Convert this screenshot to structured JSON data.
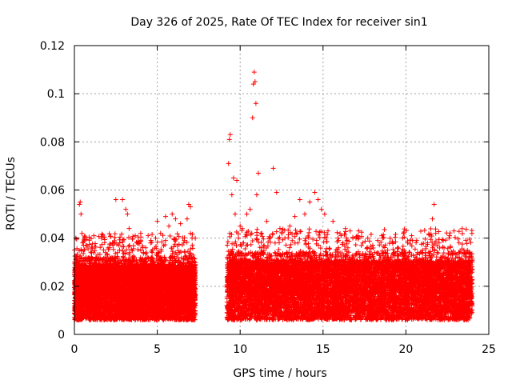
{
  "chart_data": {
    "type": "scatter",
    "title": "Day 326 of 2025, Rate Of TEC Index for receiver sin1",
    "xlabel": "GPS time / hours",
    "ylabel": "ROTI / TECUs",
    "xlim": [
      0,
      25
    ],
    "ylim": [
      0,
      0.12
    ],
    "x_ticks": [
      0,
      5,
      10,
      15,
      20,
      25
    ],
    "x_tick_labels": [
      "0",
      "5",
      "10",
      "15",
      "20",
      "25"
    ],
    "y_ticks": [
      0,
      0.02,
      0.04,
      0.06,
      0.08,
      0.1,
      0.12
    ],
    "y_tick_labels": [
      "0",
      "0.02",
      "0.04",
      "0.06",
      "0.08",
      "0.1",
      "0.12"
    ],
    "grid": true,
    "marker": "+",
    "series_color": "#ff0000",
    "series": [
      {
        "x": [
          0.2,
          0.3,
          0.35,
          0.4,
          0.5,
          0.6,
          0.8,
          1.0,
          1.3,
          1.6,
          2.0,
          2.3,
          2.5,
          2.6,
          2.9,
          3.1,
          3.2,
          3.3,
          3.5,
          3.8,
          4.0,
          4.3,
          4.6,
          4.9,
          5.0,
          5.2,
          5.5,
          5.7,
          5.9,
          6.1,
          6.4,
          6.6,
          6.8,
          6.9,
          7.0,
          7.1,
          9.3,
          9.35,
          9.4,
          9.5,
          9.6,
          9.7,
          9.8,
          9.9,
          10.0,
          10.2,
          10.4,
          10.6,
          10.7,
          10.75,
          10.8,
          10.85,
          10.9,
          10.95,
          11.0,
          11.1,
          11.3,
          11.6,
          12.0,
          12.2,
          12.4,
          12.7,
          13.0,
          13.3,
          13.6,
          13.9,
          14.2,
          14.5,
          14.7,
          14.9,
          15.1,
          15.3,
          15.6,
          15.9,
          16.2,
          16.5,
          16.8,
          17.1,
          17.4,
          17.7,
          18.0,
          18.3,
          18.6,
          18.9,
          19.2,
          19.5,
          19.8,
          20.1,
          20.4,
          20.7,
          21.0,
          21.3,
          21.6,
          21.7,
          21.8,
          22.0,
          22.3,
          22.6,
          22.9,
          23.2,
          23.5,
          23.8,
          24.0
        ],
        "y": [
          0.03,
          0.054,
          0.055,
          0.05,
          0.038,
          0.029,
          0.026,
          0.03,
          0.032,
          0.029,
          0.033,
          0.038,
          0.056,
          0.034,
          0.056,
          0.052,
          0.05,
          0.044,
          0.032,
          0.038,
          0.042,
          0.036,
          0.038,
          0.04,
          0.047,
          0.042,
          0.049,
          0.045,
          0.05,
          0.048,
          0.046,
          0.038,
          0.048,
          0.054,
          0.053,
          0.04,
          0.071,
          0.081,
          0.083,
          0.058,
          0.065,
          0.05,
          0.064,
          0.04,
          0.045,
          0.038,
          0.05,
          0.052,
          0.042,
          0.09,
          0.104,
          0.109,
          0.105,
          0.096,
          0.058,
          0.067,
          0.042,
          0.047,
          0.069,
          0.059,
          0.044,
          0.04,
          0.045,
          0.049,
          0.056,
          0.05,
          0.055,
          0.059,
          0.056,
          0.052,
          0.05,
          0.043,
          0.047,
          0.04,
          0.038,
          0.036,
          0.04,
          0.041,
          0.038,
          0.04,
          0.037,
          0.039,
          0.04,
          0.035,
          0.038,
          0.036,
          0.04,
          0.038,
          0.039,
          0.034,
          0.035,
          0.038,
          0.048,
          0.054,
          0.042,
          0.038,
          0.036,
          0.04,
          0.043,
          0.038,
          0.035,
          0.032,
          0.03
        ]
      }
    ],
    "data_bands": [
      {
        "x_start": 0.0,
        "x_end": 7.3,
        "low": 0.006,
        "mid": 0.016,
        "high": 0.03
      },
      {
        "x_start": 9.2,
        "x_end": 24.0,
        "low": 0.006,
        "mid": 0.017,
        "high": 0.032
      }
    ]
  }
}
